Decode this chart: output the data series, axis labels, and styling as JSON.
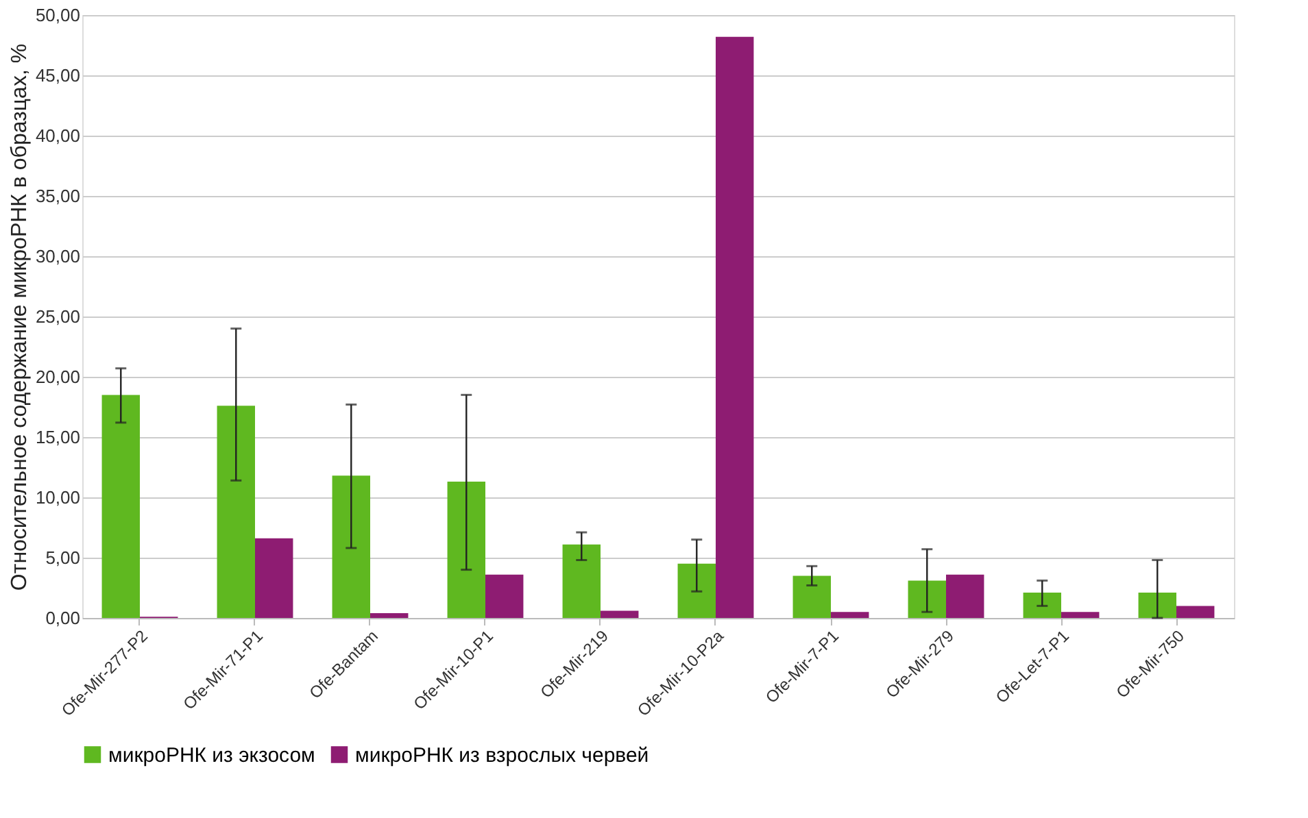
{
  "chart_data": {
    "type": "bar",
    "ylabel": "Относительное содержание микроРНК в образцах, %",
    "categories": [
      "Ofe-Mir-277-P2",
      "Ofe-Mir-71-P1",
      "Ofe-Bantam",
      "Ofe-Mir-10-P1",
      "Ofe-Mir-219",
      "Ofe-Mir-10-P2a",
      "Ofe-Mir-7-P1",
      "Ofe-Mir-279",
      "Ofe-Let-7-P1",
      "Ofe-Mir-750"
    ],
    "series": [
      {
        "name": "микроРНК из экзосом",
        "color": "#5fb820",
        "values": [
          18.5,
          17.6,
          11.8,
          11.3,
          6.1,
          4.5,
          3.5,
          3.1,
          2.1,
          2.1
        ],
        "errors": [
          [
            16.2,
            20.7
          ],
          [
            11.4,
            24.0
          ],
          [
            5.8,
            17.7
          ],
          [
            4.0,
            18.5
          ],
          [
            4.8,
            7.1
          ],
          [
            2.2,
            6.5
          ],
          [
            2.7,
            4.3
          ],
          [
            0.5,
            5.7
          ],
          [
            1.0,
            3.1
          ],
          [
            0.0,
            4.8
          ]
        ]
      },
      {
        "name": "микроРНК из взрослых червей",
        "color": "#8e1c72",
        "values": [
          0.1,
          6.6,
          0.4,
          3.6,
          0.6,
          48.2,
          0.5,
          3.6,
          0.5,
          1.0
        ]
      }
    ],
    "ylim": [
      0,
      50
    ],
    "yticks": [
      {
        "value": 0,
        "label": "0,00"
      },
      {
        "value": 5,
        "label": "5,00"
      },
      {
        "value": 10,
        "label": "10,00"
      },
      {
        "value": 15,
        "label": "15,00"
      },
      {
        "value": 20,
        "label": "20,00"
      },
      {
        "value": 25,
        "label": "25,00"
      },
      {
        "value": 30,
        "label": "30,00"
      },
      {
        "value": 35,
        "label": "35,00"
      },
      {
        "value": 40,
        "label": "40,00"
      },
      {
        "value": 45,
        "label": "45,00"
      },
      {
        "value": 50,
        "label": "50,00"
      }
    ],
    "grid": "y",
    "legend": "bottom"
  }
}
